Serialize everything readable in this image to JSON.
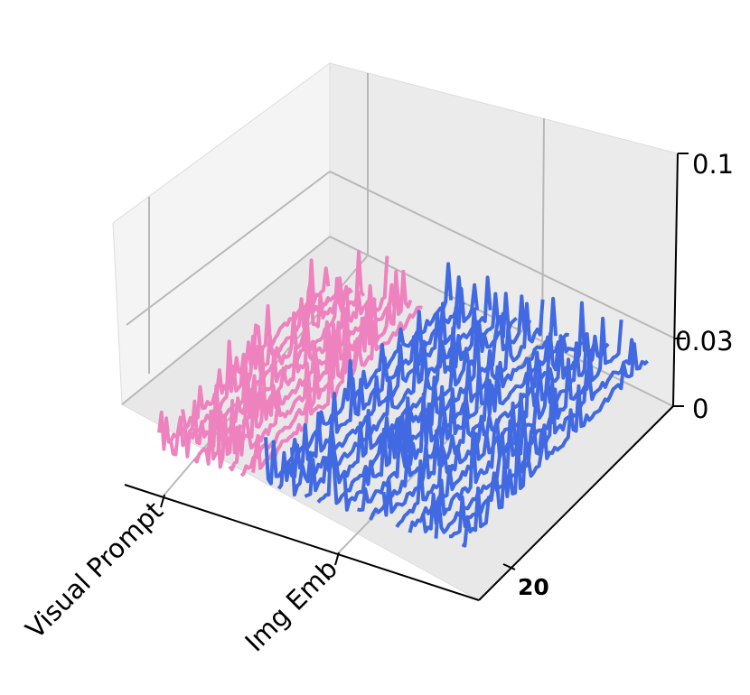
{
  "chart_data": {
    "type": "line",
    "projection": "3d",
    "title": "",
    "xlabel": "",
    "ylabel": "",
    "zlabel": "",
    "x_tick_labels": [
      "Visual Prompt",
      "Img Emb"
    ],
    "y_tick_labels": [
      "20"
    ],
    "z_tick_labels": [
      "0",
      "0.03",
      "0.1"
    ],
    "zlim": [
      0,
      0.1
    ],
    "grid": true,
    "groups": [
      {
        "label": "Visual Prompt",
        "color": "#ee82bf",
        "line_count": 9,
        "typical_value": 0.005,
        "peak_value": 0.03
      },
      {
        "label": "Img Emb",
        "color": "#4169e1",
        "line_count": 16,
        "typical_value": 0.005,
        "peak_value": 0.03
      }
    ]
  }
}
